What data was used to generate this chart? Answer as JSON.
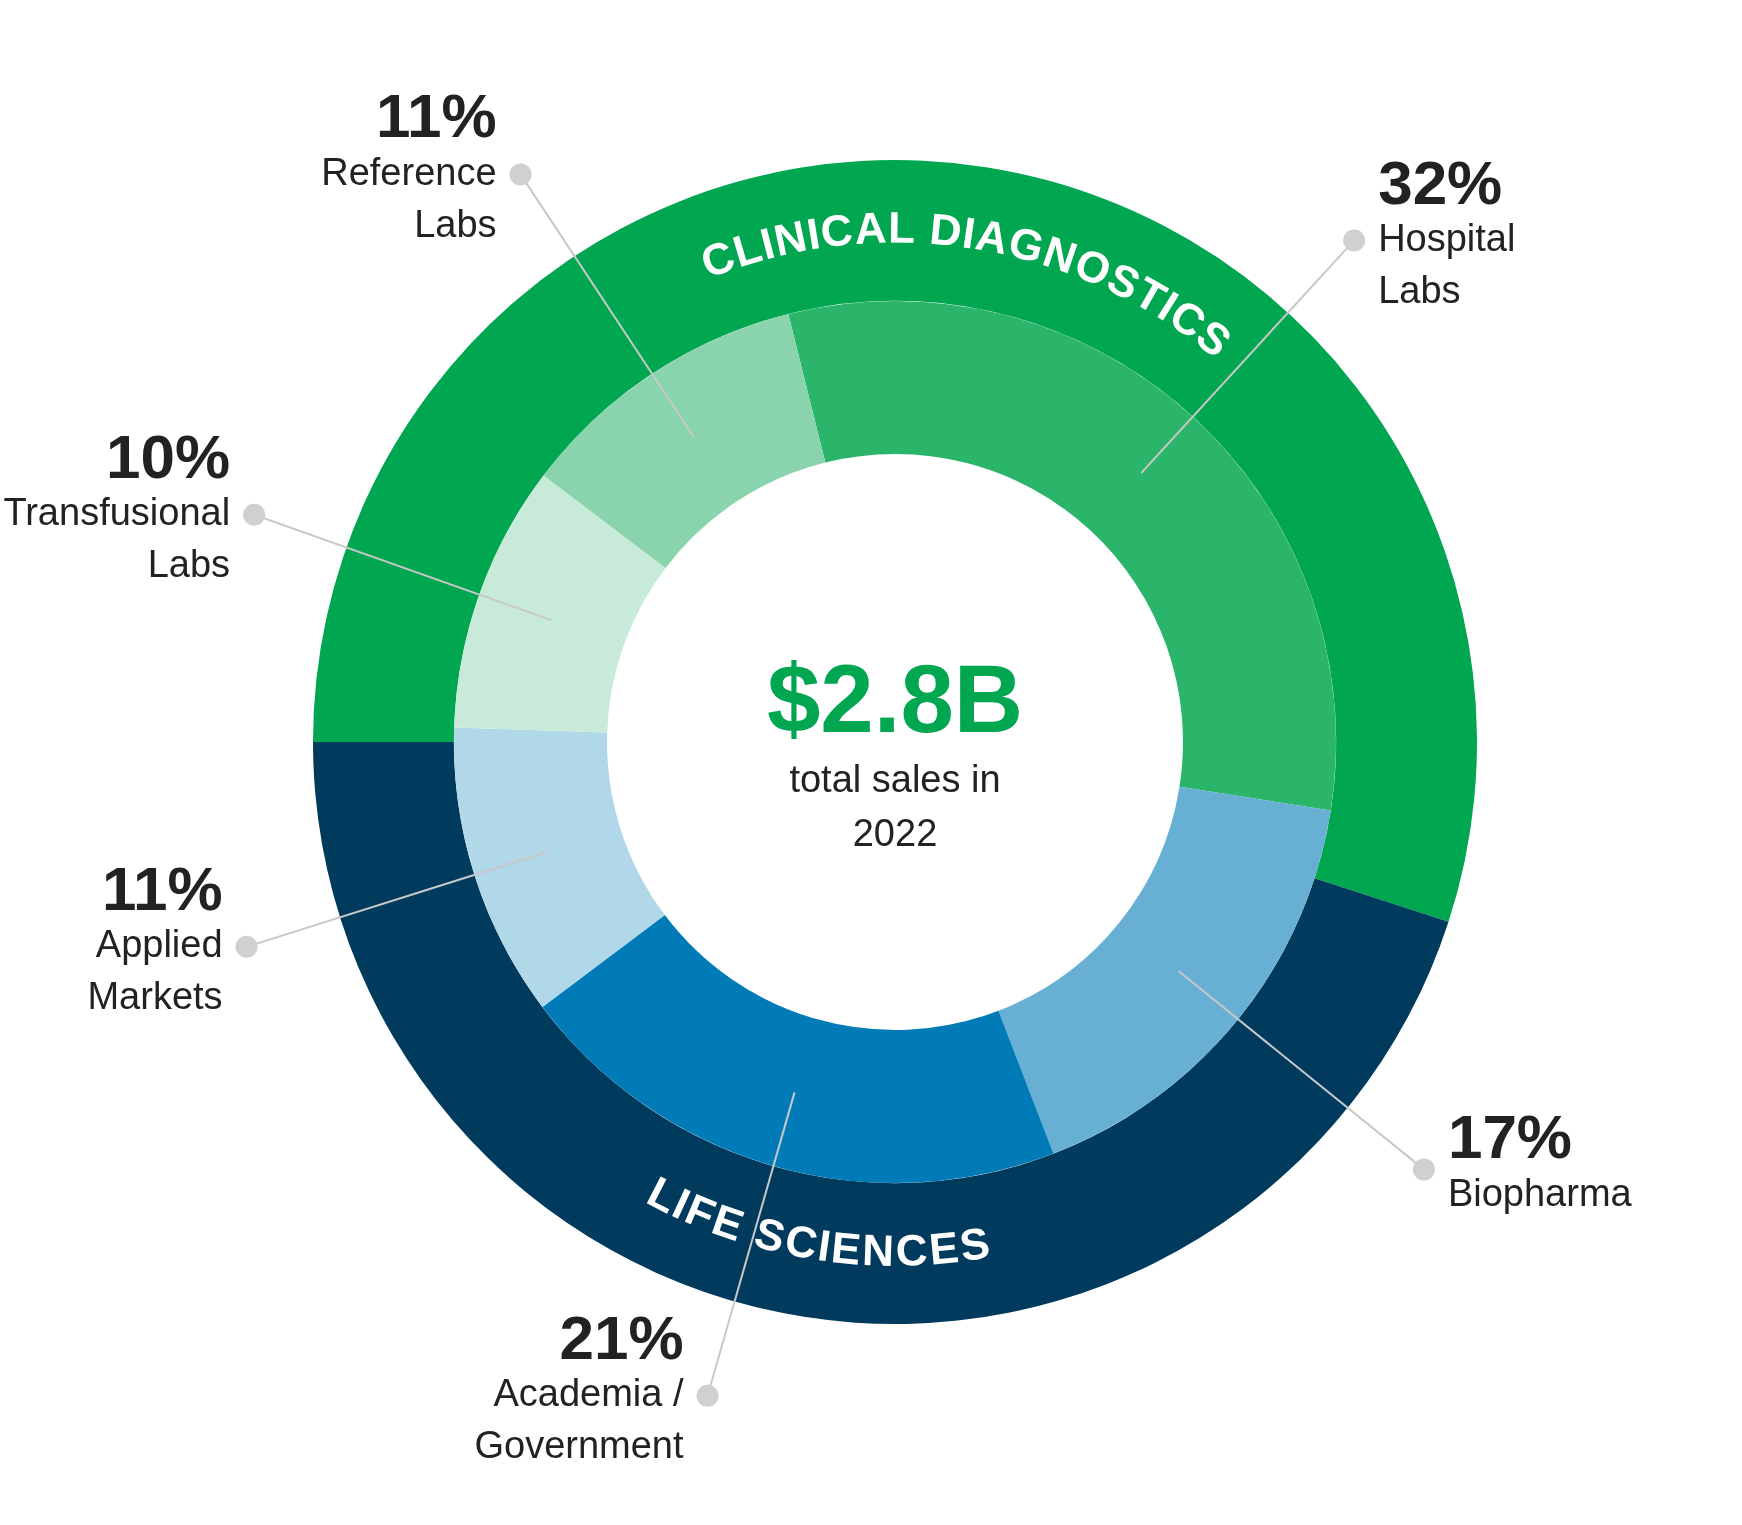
{
  "chart_data": [
    {
      "type": "donut",
      "categories": [
        "CLINICAL DIAGNOSTICS",
        "LIFE SCIENCES"
      ],
      "values": [
        55,
        45
      ],
      "colors": [
        "#00a650",
        "#003a5c"
      ],
      "legend": false
    },
    {
      "type": "donut",
      "title": "$2.8B",
      "subtitle": "total sales in 2022",
      "categories": [
        "Hospital Labs",
        "Biopharma",
        "Academia / Government",
        "Applied Markets",
        "Transfusional Labs",
        "Reference Labs"
      ],
      "values": [
        32,
        17,
        21,
        11,
        10,
        11
      ],
      "value_labels": [
        "32%",
        "17%",
        "21%",
        "11%",
        "10%",
        "11%"
      ],
      "colors": [
        "#2bb56b",
        "#67b0d4",
        "#007bb8",
        "#b0d8e8",
        "#c8ebd9",
        "#8ad4ad"
      ],
      "legend": false
    }
  ]
}
